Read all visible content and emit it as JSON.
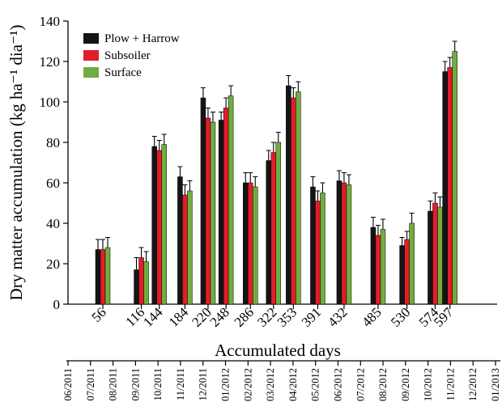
{
  "chart_data": {
    "type": "bar",
    "title": "",
    "xlabel": "Accumulated days",
    "ylabel": "Dry matter accumulation (kg ha⁻¹ dia⁻¹)",
    "ylim": [
      0,
      140
    ],
    "yticks": [
      0,
      20,
      40,
      60,
      80,
      100,
      120,
      140
    ],
    "x_scale": "linear (accumulated days)",
    "legend_position": "top-left",
    "grid": false,
    "categories": [
      56,
      116,
      144,
      184,
      220,
      248,
      286,
      322,
      353,
      391,
      432,
      485,
      530,
      574,
      597
    ],
    "category_labels": [
      "56",
      "116",
      "144",
      "184",
      "220",
      "248",
      "286",
      "322",
      "353",
      "391",
      "432",
      "485",
      "530",
      "574",
      "597"
    ],
    "series": [
      {
        "name": "Plow + Harrow",
        "color": "#141414",
        "values": [
          27,
          17,
          78,
          63,
          102,
          91,
          60,
          71,
          108,
          58,
          61,
          38,
          29,
          46,
          115
        ],
        "errors": [
          5,
          6,
          5,
          5,
          5,
          4,
          5,
          5,
          5,
          5,
          5,
          5,
          4,
          5,
          5
        ]
      },
      {
        "name": "Subsoiler",
        "color": "#e21d2a",
        "values": [
          27,
          23,
          76,
          54,
          92,
          97,
          60,
          75,
          102,
          51,
          60,
          34,
          32,
          50,
          117
        ],
        "errors": [
          5,
          5,
          5,
          5,
          5,
          5,
          5,
          5,
          5,
          5,
          5,
          5,
          4,
          5,
          5
        ]
      },
      {
        "name": "Surface",
        "color": "#70ad3f",
        "values": [
          28,
          21,
          79,
          56,
          90,
          103,
          58,
          80,
          105,
          55,
          59,
          37,
          40,
          48,
          125
        ],
        "errors": [
          5,
          5,
          5,
          5,
          5,
          5,
          5,
          5,
          5,
          5,
          5,
          5,
          5,
          5,
          5
        ]
      }
    ],
    "date_axis": {
      "labels": [
        "06/2011",
        "07/2011",
        "08/2011",
        "09/2011",
        "10/2011",
        "11/2011",
        "12/2011",
        "01/2012",
        "02/2012",
        "03/2012",
        "04/2012",
        "05/2012",
        "06/2012",
        "07/2012",
        "08/2012",
        "09/2012",
        "10/2012",
        "11/2012",
        "12/2012",
        "01/2013"
      ]
    }
  }
}
